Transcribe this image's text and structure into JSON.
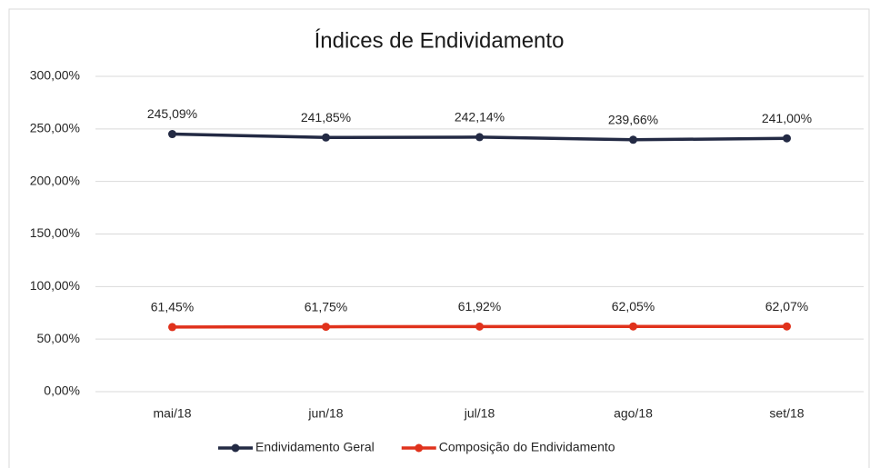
{
  "chart_data": {
    "type": "line",
    "title": "Índices de Endividamento",
    "categories": [
      "mai/18",
      "jun/18",
      "jul/18",
      "ago/18",
      "set/18"
    ],
    "series": [
      {
        "name": "Endividamento Geral",
        "color": "#232a44",
        "values": [
          245.09,
          241.85,
          242.14,
          239.66,
          241.0
        ],
        "value_labels": [
          "245,09%",
          "241,85%",
          "242,14%",
          "239,66%",
          "241,00%"
        ]
      },
      {
        "name": "Composição do Endividamento",
        "color": "#e0321c",
        "values": [
          61.45,
          61.75,
          61.92,
          62.05,
          62.07
        ],
        "value_labels": [
          "61,45%",
          "61,75%",
          "61,92%",
          "62,05%",
          "62,07%"
        ]
      }
    ],
    "ylim": [
      0,
      300
    ],
    "yticks": [
      {
        "value": 0,
        "label": "0,00%"
      },
      {
        "value": 50,
        "label": "50,00%"
      },
      {
        "value": 100,
        "label": "100,00%"
      },
      {
        "value": 150,
        "label": "150,00%"
      },
      {
        "value": 200,
        "label": "200,00%"
      },
      {
        "value": 250,
        "label": "250,00%"
      },
      {
        "value": 300,
        "label": "300,00%"
      }
    ],
    "grid": true,
    "legend": "bottom"
  }
}
